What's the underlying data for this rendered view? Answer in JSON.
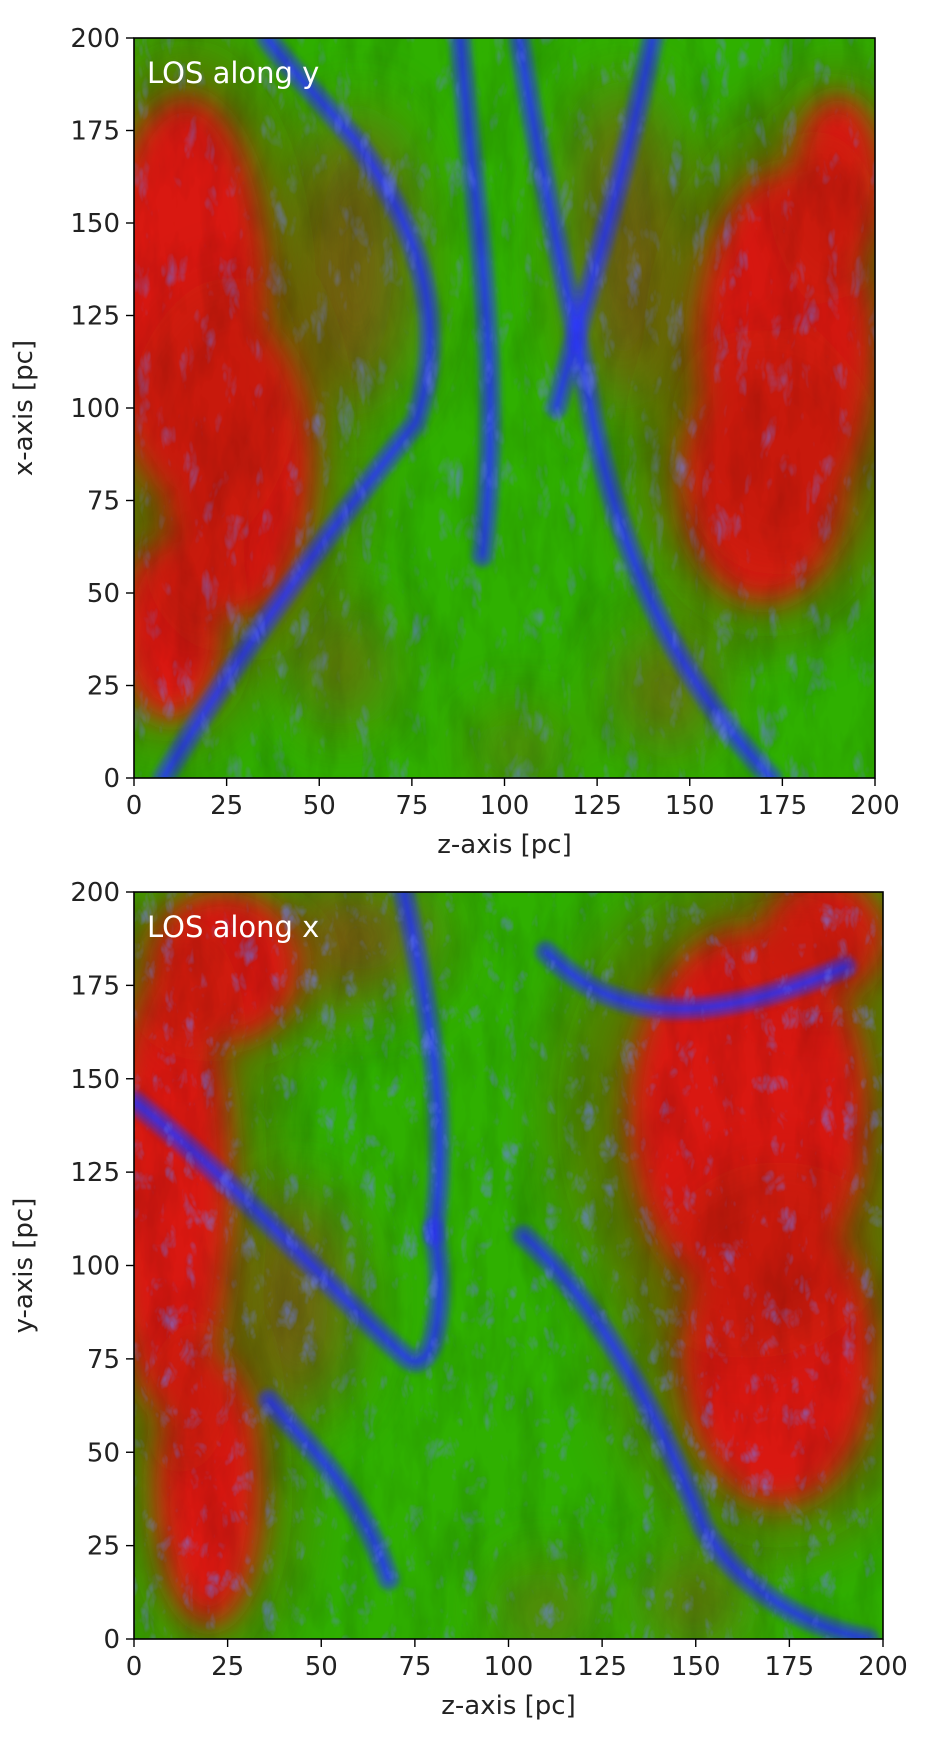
{
  "colors": {
    "red_component": "#ff1a1a",
    "green_component": "#2fb000",
    "blue_component": "#2a35ff",
    "frame": "#000000",
    "annotation_text": "#ffffff"
  },
  "chart_data": [
    {
      "type": "heatmap",
      "title": "",
      "annotation": "LOS along y",
      "xlabel": "z-axis [pc]",
      "ylabel": "x-axis [pc]",
      "xlim": [
        0,
        200
      ],
      "ylim": [
        0,
        200
      ],
      "xticks": [
        0,
        25,
        50,
        75,
        100,
        125,
        150,
        175,
        200
      ],
      "yticks": [
        0,
        25,
        50,
        75,
        100,
        125,
        150,
        175,
        200
      ],
      "grid": false,
      "colormap": "RGB composite (red, green, blue channels)"
    },
    {
      "type": "heatmap",
      "title": "",
      "annotation": "LOS along x",
      "xlabel": "z-axis [pc]",
      "ylabel": "y-axis [pc]",
      "xlim": [
        0,
        200
      ],
      "ylim": [
        0,
        200
      ],
      "xticks": [
        0,
        25,
        50,
        75,
        100,
        125,
        150,
        175,
        200
      ],
      "yticks": [
        0,
        25,
        50,
        75,
        100,
        125,
        150,
        175,
        200
      ],
      "grid": false,
      "colormap": "RGB composite (red, green, blue channels)"
    }
  ]
}
